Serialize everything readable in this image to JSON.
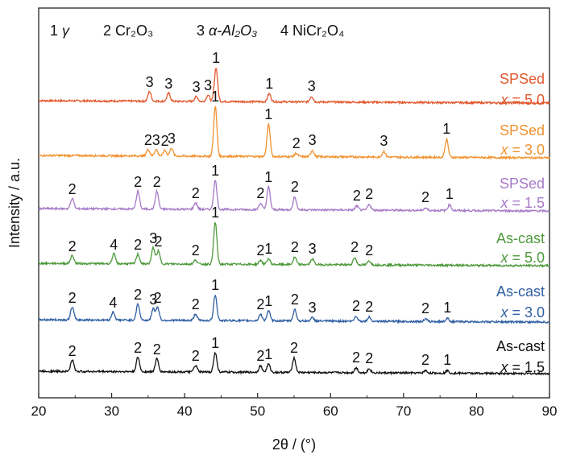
{
  "chart_data": {
    "type": "line",
    "xlabel": "2θ / (°)",
    "ylabel": "Intensity / a.u.",
    "xlim": [
      20,
      90
    ],
    "xticks": [
      20,
      30,
      40,
      50,
      60,
      70,
      80,
      90
    ],
    "legend": [
      {
        "num": "1",
        "name": "γ"
      },
      {
        "num": "2",
        "name": "Cr₂O₃"
      },
      {
        "num": "3",
        "name": "α-Al₂O₃"
      },
      {
        "num": "4",
        "name": "NiCr₂O₄"
      }
    ],
    "series": [
      {
        "name1": "SPSed",
        "name2": "x = 5.0",
        "color": "#e2572c",
        "peaks": [
          {
            "x": 35.2,
            "h": 12,
            "label": "3"
          },
          {
            "x": 37.8,
            "h": 10,
            "label": "3"
          },
          {
            "x": 41.6,
            "h": 6,
            "label": "3"
          },
          {
            "x": 43.2,
            "h": 8,
            "label": "3"
          },
          {
            "x": 44.3,
            "h": 42,
            "label": "1"
          },
          {
            "x": 51.6,
            "h": 10,
            "label": "1"
          },
          {
            "x": 57.4,
            "h": 7,
            "label": "3"
          }
        ]
      },
      {
        "name1": "SPSed",
        "name2": "x = 3.0",
        "color": "#f0922f",
        "peaks": [
          {
            "x": 35.0,
            "h": 8,
            "label": "2"
          },
          {
            "x": 36.1,
            "h": 8,
            "label": "3"
          },
          {
            "x": 37.3,
            "h": 7,
            "label": "2"
          },
          {
            "x": 38.2,
            "h": 10,
            "label": "3"
          },
          {
            "x": 44.2,
            "h": 62,
            "label": "1"
          },
          {
            "x": 51.5,
            "h": 40,
            "label": "1"
          },
          {
            "x": 55.3,
            "h": 4,
            "label": "2"
          },
          {
            "x": 57.5,
            "h": 8,
            "label": "3"
          },
          {
            "x": 67.3,
            "h": 7,
            "label": "3"
          },
          {
            "x": 75.9,
            "h": 22,
            "label": "1"
          }
        ]
      },
      {
        "name1": "SPSed",
        "name2": "x = 1.5",
        "color": "#a679c7",
        "peaks": [
          {
            "x": 24.6,
            "h": 13,
            "label": "2"
          },
          {
            "x": 33.6,
            "h": 22,
            "label": "2"
          },
          {
            "x": 36.2,
            "h": 22,
            "label": "2"
          },
          {
            "x": 41.5,
            "h": 8,
            "label": "2"
          },
          {
            "x": 44.2,
            "h": 36,
            "label": "1"
          },
          {
            "x": 50.4,
            "h": 8,
            "label": "2"
          },
          {
            "x": 51.5,
            "h": 28,
            "label": "1"
          },
          {
            "x": 55.1,
            "h": 16,
            "label": "2"
          },
          {
            "x": 63.6,
            "h": 5,
            "label": "2"
          },
          {
            "x": 65.3,
            "h": 7,
            "label": "2"
          },
          {
            "x": 73.0,
            "h": 3,
            "label": "2"
          },
          {
            "x": 76.3,
            "h": 7,
            "label": "1"
          }
        ]
      },
      {
        "name1": "As-cast",
        "name2": "x = 5.0",
        "color": "#4e9a3c",
        "peaks": [
          {
            "x": 24.6,
            "h": 10,
            "label": "2"
          },
          {
            "x": 30.3,
            "h": 12,
            "label": "4"
          },
          {
            "x": 33.6,
            "h": 12,
            "label": "2"
          },
          {
            "x": 35.7,
            "h": 20,
            "label": "3"
          },
          {
            "x": 36.4,
            "h": 16,
            "label": "2"
          },
          {
            "x": 41.5,
            "h": 5,
            "label": "2"
          },
          {
            "x": 44.2,
            "h": 52,
            "label": "1"
          },
          {
            "x": 50.4,
            "h": 5,
            "label": "2"
          },
          {
            "x": 51.5,
            "h": 7,
            "label": "1"
          },
          {
            "x": 55.1,
            "h": 9,
            "label": "2"
          },
          {
            "x": 57.5,
            "h": 7,
            "label": "3"
          },
          {
            "x": 63.3,
            "h": 9,
            "label": "2"
          },
          {
            "x": 65.3,
            "h": 5,
            "label": "2"
          }
        ]
      },
      {
        "name1": "As-cast",
        "name2": "x = 3.0",
        "color": "#2f5fa3",
        "peaks": [
          {
            "x": 24.6,
            "h": 16,
            "label": "2"
          },
          {
            "x": 30.2,
            "h": 10,
            "label": "4"
          },
          {
            "x": 33.6,
            "h": 20,
            "label": "2"
          },
          {
            "x": 35.7,
            "h": 14,
            "label": "3"
          },
          {
            "x": 36.3,
            "h": 16,
            "label": "2"
          },
          {
            "x": 41.5,
            "h": 8,
            "label": "2"
          },
          {
            "x": 44.2,
            "h": 32,
            "label": "1"
          },
          {
            "x": 50.4,
            "h": 8,
            "label": "2"
          },
          {
            "x": 51.5,
            "h": 12,
            "label": "1"
          },
          {
            "x": 55.1,
            "h": 14,
            "label": "2"
          },
          {
            "x": 57.5,
            "h": 4,
            "label": "3"
          },
          {
            "x": 63.5,
            "h": 6,
            "label": "2"
          },
          {
            "x": 65.3,
            "h": 5,
            "label": "2"
          },
          {
            "x": 73.0,
            "h": 3,
            "label": "2"
          },
          {
            "x": 76.0,
            "h": 4,
            "label": "1"
          }
        ]
      },
      {
        "name1": "As-cast",
        "name2": "x = 1.5",
        "color": "#111111",
        "peaks": [
          {
            "x": 24.6,
            "h": 14,
            "label": "2"
          },
          {
            "x": 33.6,
            "h": 18,
            "label": "2"
          },
          {
            "x": 36.2,
            "h": 16,
            "label": "2"
          },
          {
            "x": 41.5,
            "h": 8,
            "label": "2"
          },
          {
            "x": 44.2,
            "h": 24,
            "label": "1"
          },
          {
            "x": 50.4,
            "h": 8,
            "label": "2"
          },
          {
            "x": 51.5,
            "h": 10,
            "label": "1"
          },
          {
            "x": 55.0,
            "h": 18,
            "label": "2"
          },
          {
            "x": 63.5,
            "h": 6,
            "label": "2"
          },
          {
            "x": 65.3,
            "h": 5,
            "label": "2"
          },
          {
            "x": 73.0,
            "h": 3,
            "label": "2"
          },
          {
            "x": 76.0,
            "h": 3,
            "label": "1"
          }
        ]
      }
    ]
  }
}
